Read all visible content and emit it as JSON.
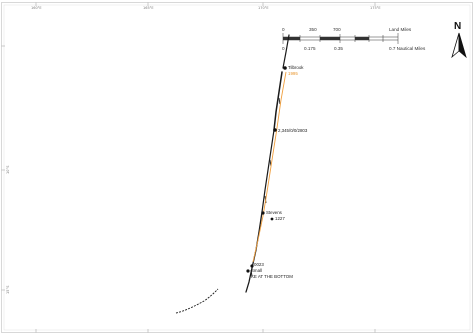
{
  "frame": {
    "top_ticks": [
      "160°E",
      "165°E",
      "170°E",
      "175°E"
    ],
    "left_ticks": [
      "10°S",
      "15°S"
    ]
  },
  "scale_bar": {
    "top_labels": [
      "0",
      "350",
      "700"
    ],
    "top_unit": "Land Miles",
    "bottom_labels": [
      "0",
      "0.175",
      "0.35"
    ],
    "bottom_unit": "0.7 Nautical Miles"
  },
  "north_arrow": {
    "letter": "N"
  },
  "points": {
    "top_label": "Tilbrook",
    "top_sublabel": "1995",
    "mid_label": "2,345/0/0/2803",
    "lower_label": "Stevens",
    "lower_sublabel": "1227",
    "bottom_num": "0023",
    "bottom_small": "Small",
    "bottom_caption": "KE AT THE BOTTOM"
  },
  "colors": {
    "track_dark": "#1a1a1a",
    "track_orange": "#f0a040",
    "frame": "#c8c8c8"
  }
}
